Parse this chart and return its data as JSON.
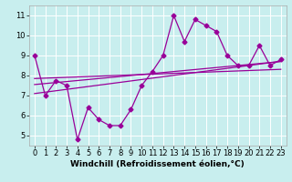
{
  "xlabel": "Windchill (Refroidissement éolien,°C)",
  "bg_color": "#c8eeee",
  "line_color": "#990099",
  "grid_color": "#ffffff",
  "x_main": [
    0,
    1,
    2,
    3,
    4,
    5,
    6,
    7,
    8,
    9,
    10,
    11,
    12,
    13,
    14,
    15,
    16,
    17,
    18,
    19,
    20,
    21,
    22,
    23
  ],
  "y_main": [
    9.0,
    7.0,
    7.75,
    7.5,
    4.8,
    6.4,
    5.8,
    5.5,
    5.5,
    6.3,
    7.5,
    8.2,
    9.0,
    11.0,
    9.7,
    10.8,
    10.5,
    10.2,
    9.0,
    8.5,
    8.5,
    9.5,
    8.5,
    8.8
  ],
  "y_reg1": [
    7.85,
    7.87,
    7.89,
    7.91,
    7.93,
    7.95,
    7.97,
    7.99,
    8.01,
    8.03,
    8.05,
    8.07,
    8.09,
    8.11,
    8.13,
    8.15,
    8.17,
    8.19,
    8.21,
    8.23,
    8.25,
    8.27,
    8.29,
    8.31
  ],
  "y_reg2": [
    7.55,
    7.6,
    7.65,
    7.7,
    7.75,
    7.8,
    7.85,
    7.9,
    7.95,
    8.0,
    8.05,
    8.1,
    8.15,
    8.2,
    8.25,
    8.3,
    8.35,
    8.4,
    8.45,
    8.5,
    8.55,
    8.6,
    8.65,
    8.7
  ],
  "y_reg3": [
    7.1,
    7.17,
    7.24,
    7.31,
    7.38,
    7.45,
    7.52,
    7.59,
    7.66,
    7.73,
    7.8,
    7.87,
    7.94,
    8.01,
    8.08,
    8.15,
    8.22,
    8.29,
    8.36,
    8.43,
    8.5,
    8.57,
    8.64,
    8.71
  ],
  "ylim": [
    4.5,
    11.5
  ],
  "xlim": [
    -0.5,
    23.5
  ],
  "yticks": [
    5,
    6,
    7,
    8,
    9,
    10,
    11
  ],
  "xticks": [
    0,
    1,
    2,
    3,
    4,
    5,
    6,
    7,
    8,
    9,
    10,
    11,
    12,
    13,
    14,
    15,
    16,
    17,
    18,
    19,
    20,
    21,
    22,
    23
  ],
  "xtick_labels": [
    "0",
    "1",
    "2",
    "3",
    "4",
    "5",
    "6",
    "7",
    "8",
    "9",
    "10",
    "11",
    "12",
    "13",
    "14",
    "15",
    "16",
    "17",
    "18",
    "19",
    "20",
    "21",
    "22",
    "23"
  ],
  "xlabel_fontsize": 6.5,
  "tick_fontsize": 6,
  "marker_size": 2.5,
  "line_width": 0.9
}
